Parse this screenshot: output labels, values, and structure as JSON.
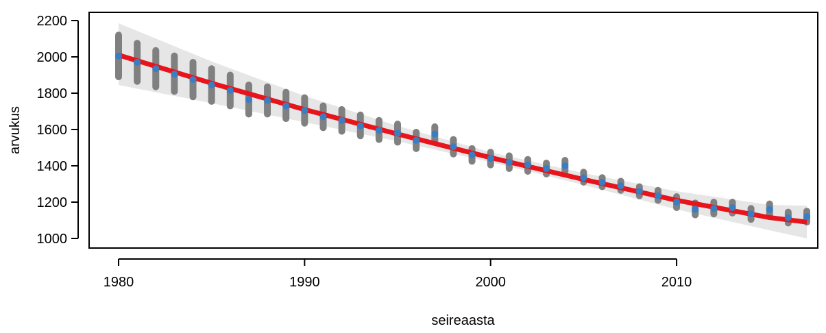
{
  "chart_data": {
    "type": "scatter",
    "xlabel": "seireaasta",
    "ylabel": "arvukus",
    "xlim": [
      1980,
      2017
    ],
    "ylim": [
      1000,
      2200
    ],
    "xticks": [
      1980,
      1990,
      2000,
      2010
    ],
    "yticks": [
      1000,
      1200,
      1400,
      1600,
      1800,
      2000,
      2200
    ],
    "grid": false,
    "colors": {
      "points": "#3a7ec2",
      "trend": "#e8141b",
      "intervals": "#808080",
      "band": "#e6e6e6"
    },
    "points": [
      {
        "year": 1980,
        "estimate": 2005,
        "low": 1890,
        "high": 2120
      },
      {
        "year": 1981,
        "estimate": 1970,
        "low": 1865,
        "high": 2075
      },
      {
        "year": 1982,
        "estimate": 1935,
        "low": 1835,
        "high": 2035
      },
      {
        "year": 1983,
        "estimate": 1905,
        "low": 1810,
        "high": 2005
      },
      {
        "year": 1984,
        "estimate": 1875,
        "low": 1780,
        "high": 1970
      },
      {
        "year": 1985,
        "estimate": 1845,
        "low": 1755,
        "high": 1935
      },
      {
        "year": 1986,
        "estimate": 1815,
        "low": 1730,
        "high": 1900
      },
      {
        "year": 1987,
        "estimate": 1765,
        "low": 1685,
        "high": 1845
      },
      {
        "year": 1988,
        "estimate": 1760,
        "low": 1685,
        "high": 1835
      },
      {
        "year": 1989,
        "estimate": 1730,
        "low": 1660,
        "high": 1805
      },
      {
        "year": 1990,
        "estimate": 1705,
        "low": 1635,
        "high": 1775
      },
      {
        "year": 1991,
        "estimate": 1670,
        "low": 1610,
        "high": 1730
      },
      {
        "year": 1992,
        "estimate": 1650,
        "low": 1590,
        "high": 1710
      },
      {
        "year": 1993,
        "estimate": 1620,
        "low": 1565,
        "high": 1680
      },
      {
        "year": 1994,
        "estimate": 1595,
        "low": 1545,
        "high": 1650
      },
      {
        "year": 1995,
        "estimate": 1580,
        "low": 1530,
        "high": 1630
      },
      {
        "year": 1996,
        "estimate": 1540,
        "low": 1495,
        "high": 1585
      },
      {
        "year": 1997,
        "estimate": 1575,
        "low": 1530,
        "high": 1615
      },
      {
        "year": 1998,
        "estimate": 1505,
        "low": 1465,
        "high": 1545
      },
      {
        "year": 1999,
        "estimate": 1460,
        "low": 1425,
        "high": 1495
      },
      {
        "year": 2000,
        "estimate": 1440,
        "low": 1405,
        "high": 1475
      },
      {
        "year": 2001,
        "estimate": 1420,
        "low": 1385,
        "high": 1455
      },
      {
        "year": 2002,
        "estimate": 1405,
        "low": 1370,
        "high": 1435
      },
      {
        "year": 2003,
        "estimate": 1385,
        "low": 1355,
        "high": 1415
      },
      {
        "year": 2004,
        "estimate": 1400,
        "low": 1370,
        "high": 1430
      },
      {
        "year": 2005,
        "estimate": 1335,
        "low": 1310,
        "high": 1365
      },
      {
        "year": 2006,
        "estimate": 1310,
        "low": 1285,
        "high": 1335
      },
      {
        "year": 2007,
        "estimate": 1290,
        "low": 1265,
        "high": 1315
      },
      {
        "year": 2008,
        "estimate": 1260,
        "low": 1235,
        "high": 1285
      },
      {
        "year": 2009,
        "estimate": 1235,
        "low": 1210,
        "high": 1265
      },
      {
        "year": 2010,
        "estimate": 1200,
        "low": 1170,
        "high": 1230
      },
      {
        "year": 2011,
        "estimate": 1160,
        "low": 1130,
        "high": 1195
      },
      {
        "year": 2012,
        "estimate": 1165,
        "low": 1135,
        "high": 1200
      },
      {
        "year": 2013,
        "estimate": 1170,
        "low": 1140,
        "high": 1200
      },
      {
        "year": 2014,
        "estimate": 1135,
        "low": 1105,
        "high": 1165
      },
      {
        "year": 2015,
        "estimate": 1160,
        "low": 1130,
        "high": 1190
      },
      {
        "year": 2016,
        "estimate": 1115,
        "low": 1085,
        "high": 1145
      },
      {
        "year": 2017,
        "estimate": 1120,
        "low": 1090,
        "high": 1150
      }
    ],
    "trend": [
      {
        "year": 1980,
        "value": 2010,
        "low": 1845,
        "high": 2185
      },
      {
        "year": 1985,
        "value": 1855,
        "low": 1745,
        "high": 1975
      },
      {
        "year": 1990,
        "value": 1710,
        "low": 1640,
        "high": 1785
      },
      {
        "year": 1995,
        "value": 1575,
        "low": 1535,
        "high": 1620
      },
      {
        "year": 2000,
        "value": 1445,
        "low": 1420,
        "high": 1475
      },
      {
        "year": 2005,
        "value": 1325,
        "low": 1295,
        "high": 1360
      },
      {
        "year": 2010,
        "value": 1210,
        "low": 1160,
        "high": 1260
      },
      {
        "year": 2015,
        "value": 1115,
        "low": 1045,
        "high": 1185
      },
      {
        "year": 2017,
        "value": 1090,
        "low": 1000,
        "high": 1180
      }
    ]
  }
}
